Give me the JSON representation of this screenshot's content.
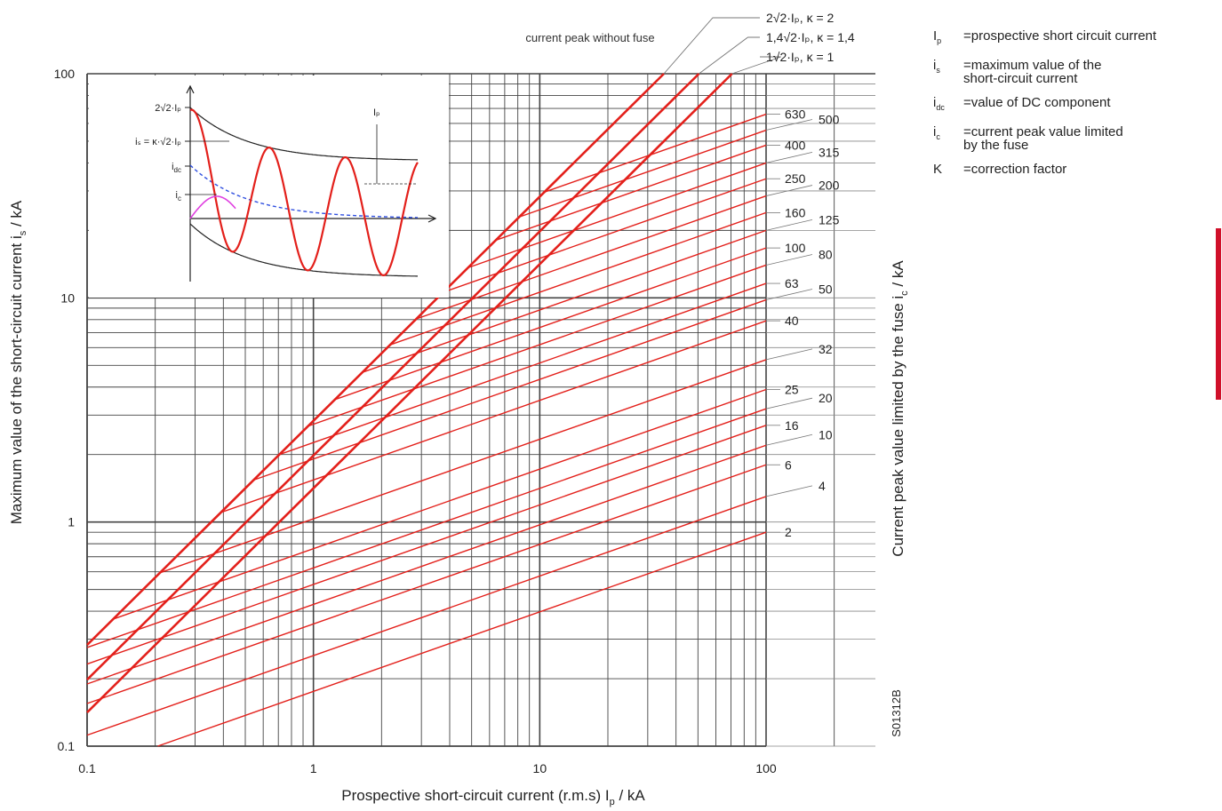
{
  "chart_data": {
    "type": "line",
    "x_scale": "log",
    "y_scale": "log",
    "xlim": [
      0.1,
      200
    ],
    "ylim": [
      0.1,
      100
    ],
    "x_ticks": [
      {
        "value": 0.1,
        "label": "0.1"
      },
      {
        "value": 1,
        "label": "1"
      },
      {
        "value": 10,
        "label": "10"
      },
      {
        "value": 100,
        "label": "100"
      }
    ],
    "y_ticks": [
      {
        "value": 0.1,
        "label": "0.1"
      },
      {
        "value": 1,
        "label": "1"
      },
      {
        "value": 10,
        "label": "10"
      },
      {
        "value": 100,
        "label": "100"
      }
    ],
    "xlabel": {
      "main": "Prospective short-circuit current (r.m.s) I",
      "sub": "p",
      "tail": " / kA"
    },
    "ylabel": {
      "main": "Maximum value of the short-circuit current i",
      "sub": "s",
      "tail": " / kA"
    },
    "y2label": {
      "main": "Current peak value limited by the fuse i",
      "sub": "c",
      "tail": " / kA"
    },
    "grid": true,
    "code": "S01312B",
    "peak_caption": "current peak without fuse",
    "peak_lines": [
      {
        "label": "2√2·Iₚ, κ = 2",
        "kappa": 2
      },
      {
        "label": "1,4√2·Iₚ, κ = 1,4",
        "kappa": 1.4
      },
      {
        "label": "1√2·Iₚ, κ = 1",
        "kappa": 1
      }
    ],
    "fuse_lines": [
      {
        "rating": "630",
        "ic_at_100": 66
      },
      {
        "rating": "500",
        "ic_at_100": 56
      },
      {
        "rating": "400",
        "ic_at_100": 48
      },
      {
        "rating": "315",
        "ic_at_100": 40
      },
      {
        "rating": "250",
        "ic_at_100": 34
      },
      {
        "rating": "200",
        "ic_at_100": 28.5
      },
      {
        "rating": "160",
        "ic_at_100": 24
      },
      {
        "rating": "125",
        "ic_at_100": 20
      },
      {
        "rating": "100",
        "ic_at_100": 16.7
      },
      {
        "rating": "80",
        "ic_at_100": 14
      },
      {
        "rating": "63",
        "ic_at_100": 11.6
      },
      {
        "rating": "50",
        "ic_at_100": 9.8
      },
      {
        "rating": "40",
        "ic_at_100": 7.9
      },
      {
        "rating": "32",
        "ic_at_100": 5.3
      },
      {
        "rating": "25",
        "ic_at_100": 3.9
      },
      {
        "rating": "20",
        "ic_at_100": 3.2
      },
      {
        "rating": "16",
        "ic_at_100": 2.7
      },
      {
        "rating": "10",
        "ic_at_100": 2.2
      },
      {
        "rating": "6",
        "ic_at_100": 1.8
      },
      {
        "rating": "4",
        "ic_at_100": 1.3
      },
      {
        "rating": "2",
        "ic_at_100": 0.9
      }
    ],
    "inset": {
      "labels": [
        "2√2·Iₚ",
        "iₛ = κ·√2·Iₚ",
        "i꜀",
        "i꜀",
        "Iₚ"
      ],
      "label_keys": [
        "top_level",
        "is_level",
        "idc",
        "ic",
        "ip"
      ]
    },
    "inset_text": {
      "top_level": "2√2·Iₚ",
      "is_level": "iₛ = κ·√2·Iₚ",
      "idc": "i",
      "idc_sub": "dc",
      "ic": "i",
      "ic_sub": "c",
      "ip": "Iₚ"
    }
  },
  "legend": [
    {
      "symbol": "I",
      "sub": "p",
      "desc": "=prospective short circuit current"
    },
    {
      "symbol": "i",
      "sub": "s",
      "desc": "=maximum value of the\n  short-circuit current"
    },
    {
      "symbol": "i",
      "sub": "dc",
      "desc": "=value of DC component"
    },
    {
      "symbol": "i",
      "sub": "c",
      "desc": "=current peak value limited\n  by the fuse"
    },
    {
      "symbol": "K",
      "sub": "",
      "desc": "=correction factor"
    }
  ],
  "colors": {
    "curve": "#e3201b",
    "grid": "#444444",
    "dc_component": "#2f4fe0",
    "limited": "#e040e0",
    "accent_bar": "#d0102a"
  }
}
